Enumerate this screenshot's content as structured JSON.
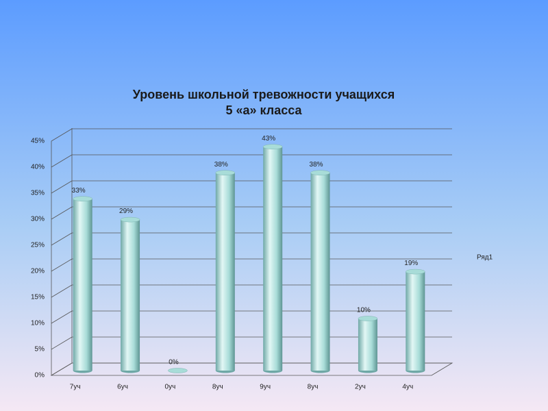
{
  "chart_data": {
    "type": "bar3d",
    "title": [
      "Уровень школьной тревожности учащихся",
      "5 «а» класса"
    ],
    "categories": [
      "7уч",
      "6уч",
      "0уч",
      "8уч",
      "9уч",
      "8уч",
      "2уч",
      "4уч"
    ],
    "series": [
      {
        "name": "Ряд1",
        "color": "#a8dcd8",
        "values": [
          33,
          29,
          0,
          38,
          43,
          38,
          10,
          19
        ],
        "value_labels": [
          "33%",
          "29%",
          "0%",
          "38%",
          "43%",
          "38%",
          "10%",
          "19%"
        ]
      }
    ],
    "ylim": [
      0,
      45
    ],
    "yticks": [
      {
        "value": 0,
        "label": "0%"
      },
      {
        "value": 5,
        "label": "5%"
      },
      {
        "value": 10,
        "label": "10%"
      },
      {
        "value": 15,
        "label": "15%"
      },
      {
        "value": 20,
        "label": "20%"
      },
      {
        "value": 25,
        "label": "25%"
      },
      {
        "value": 30,
        "label": "30%"
      },
      {
        "value": 35,
        "label": "35%"
      },
      {
        "value": 40,
        "label": "40%"
      },
      {
        "value": 45,
        "label": "45%"
      }
    ],
    "grid": true,
    "legend": "right"
  }
}
